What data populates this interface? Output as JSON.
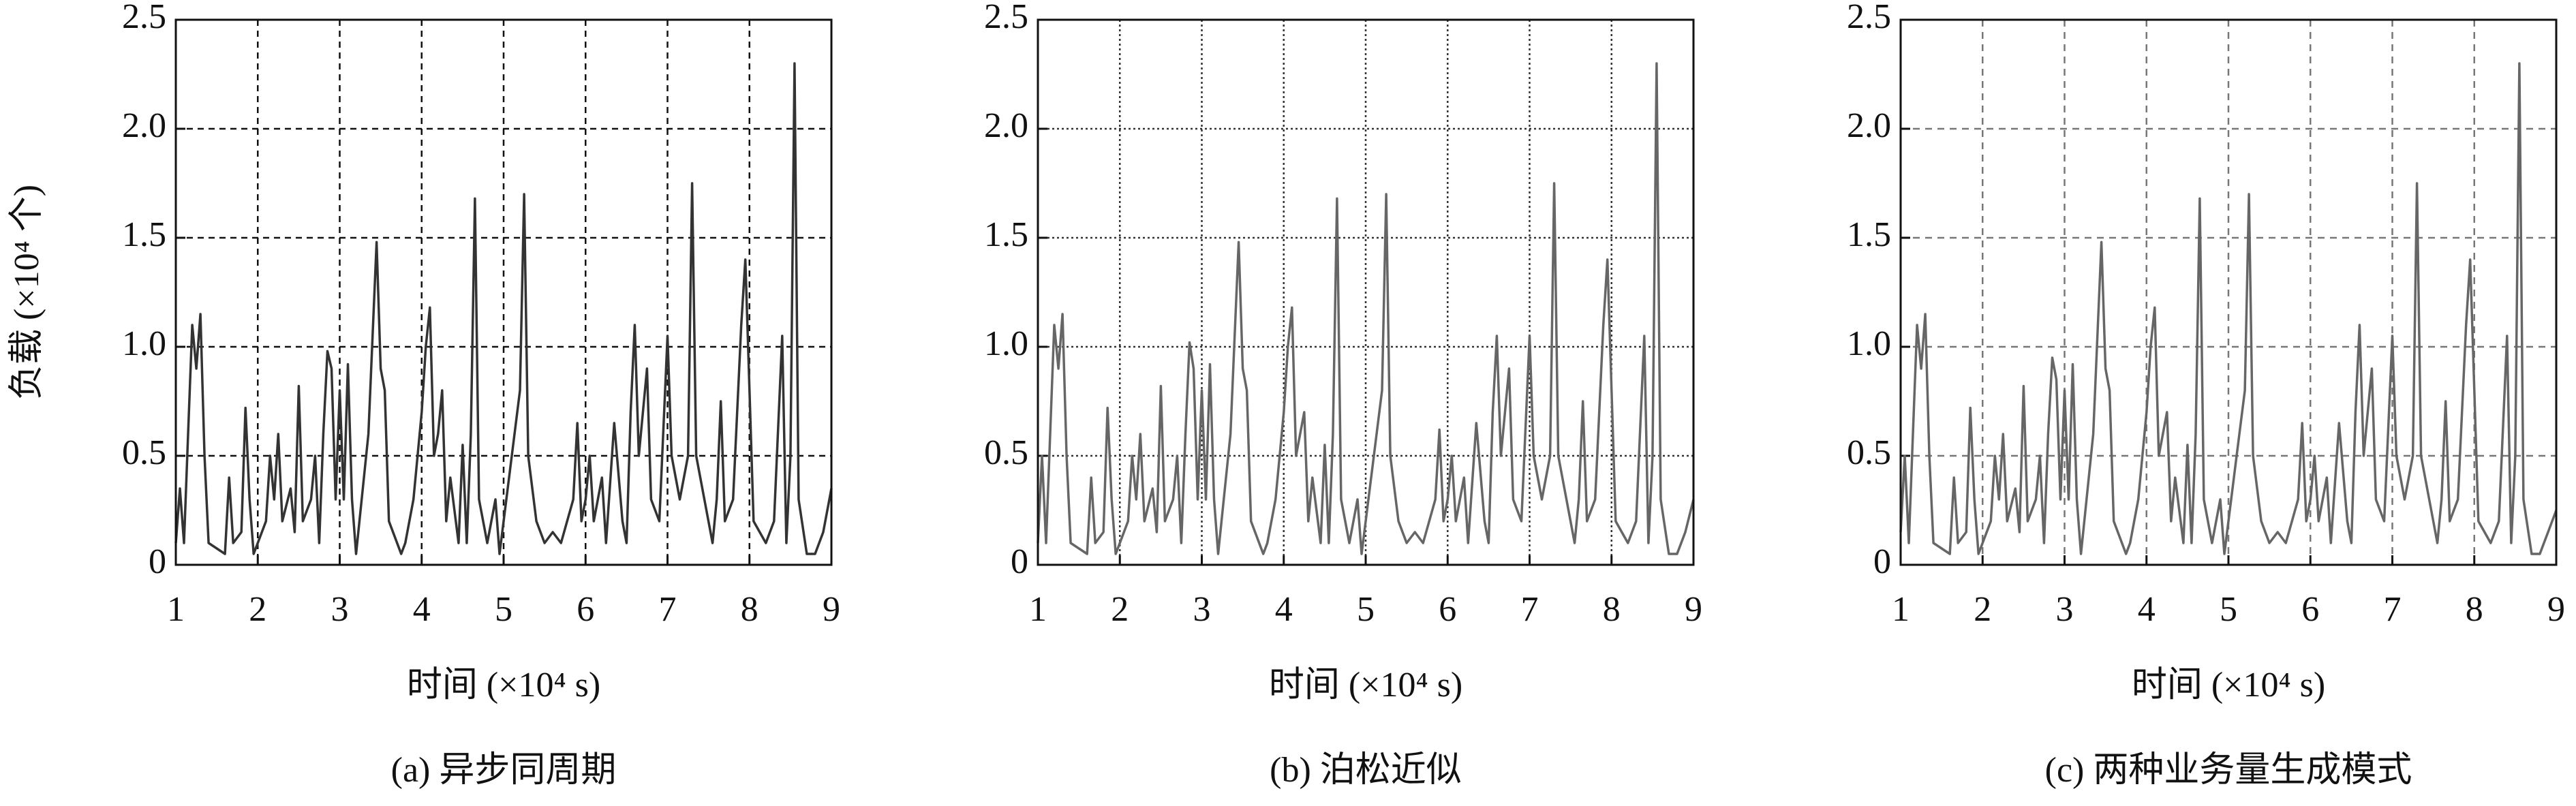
{
  "chart_data": [
    {
      "type": "line",
      "xlabel": "时间 (×10⁴ s)",
      "ylabel": "负载 (×10⁴ 个)",
      "caption": "(a) 异步同周期",
      "color": "#333333",
      "xlim": [
        1,
        9
      ],
      "ylim": [
        0,
        2.5
      ],
      "xticks": [
        1,
        2,
        3,
        4,
        5,
        6,
        7,
        8,
        9
      ],
      "yticks": [
        0,
        0.5,
        {
          "value": 1,
          "label": "1.0"
        },
        1.5,
        {
          "value": 2,
          "label": "2.0"
        },
        2.5
      ],
      "grid": true,
      "x": [
        1.0,
        1.05,
        1.1,
        1.15,
        1.2,
        1.25,
        1.3,
        1.35,
        1.4,
        1.6,
        1.65,
        1.7,
        1.8,
        1.85,
        1.9,
        1.95,
        2.1,
        2.15,
        2.2,
        2.25,
        2.3,
        2.4,
        2.45,
        2.5,
        2.55,
        2.65,
        2.7,
        2.75,
        2.8,
        2.85,
        2.9,
        2.95,
        3.0,
        3.05,
        3.1,
        3.15,
        3.2,
        3.35,
        3.45,
        3.5,
        3.55,
        3.6,
        3.75,
        3.8,
        3.9,
        4.0,
        4.05,
        4.1,
        4.15,
        4.2,
        4.25,
        4.3,
        4.35,
        4.45,
        4.5,
        4.55,
        4.6,
        4.65,
        4.7,
        4.8,
        4.9,
        4.95,
        5.1,
        5.2,
        5.25,
        5.3,
        5.4,
        5.5,
        5.6,
        5.7,
        5.85,
        5.9,
        5.95,
        6.0,
        6.05,
        6.1,
        6.2,
        6.25,
        6.35,
        6.45,
        6.5,
        6.55,
        6.6,
        6.65,
        6.75,
        6.8,
        6.9,
        7.0,
        7.05,
        7.15,
        7.25,
        7.3,
        7.35,
        7.45,
        7.55,
        7.6,
        7.65,
        7.7,
        7.8,
        7.9,
        7.95,
        8.0,
        8.05,
        8.2,
        8.3,
        8.4,
        8.45,
        8.5,
        8.55,
        8.6,
        8.7,
        8.8,
        8.9,
        9.0
      ],
      "values": [
        0.1,
        0.35,
        0.1,
        0.6,
        1.1,
        0.9,
        1.15,
        0.5,
        0.1,
        0.05,
        0.4,
        0.1,
        0.15,
        0.72,
        0.3,
        0.05,
        0.2,
        0.5,
        0.3,
        0.6,
        0.2,
        0.35,
        0.15,
        0.82,
        0.2,
        0.3,
        0.5,
        0.1,
        0.6,
        0.98,
        0.9,
        0.3,
        0.8,
        0.3,
        0.92,
        0.3,
        0.05,
        0.6,
        1.48,
        0.9,
        0.8,
        0.2,
        0.05,
        0.1,
        0.3,
        0.7,
        1.0,
        1.18,
        0.5,
        0.6,
        0.8,
        0.2,
        0.4,
        0.1,
        0.55,
        0.1,
        0.6,
        1.68,
        0.3,
        0.1,
        0.3,
        0.05,
        0.5,
        0.8,
        1.7,
        0.5,
        0.2,
        0.1,
        0.15,
        0.1,
        0.3,
        0.65,
        0.2,
        0.3,
        0.5,
        0.2,
        0.4,
        0.1,
        0.65,
        0.2,
        0.1,
        0.7,
        1.1,
        0.5,
        0.9,
        0.3,
        0.2,
        1.05,
        0.5,
        0.3,
        0.5,
        1.75,
        0.5,
        0.3,
        0.1,
        0.3,
        0.75,
        0.2,
        0.3,
        1.1,
        1.4,
        0.8,
        0.2,
        0.1,
        0.2,
        1.05,
        0.1,
        0.5,
        2.3,
        0.3,
        0.05,
        0.05,
        0.15,
        0.35
      ]
    },
    {
      "type": "line",
      "xlabel": "时间 (×10⁴ s)",
      "caption": "(b) 泊松近似",
      "color": "#666666",
      "xlim": [
        1,
        9
      ],
      "ylim": [
        0,
        2.5
      ],
      "xticks": [
        1,
        2,
        3,
        4,
        5,
        6,
        7,
        8,
        9
      ],
      "yticks": [
        0,
        0.5,
        {
          "value": 1,
          "label": "1.0"
        },
        1.5,
        {
          "value": 2,
          "label": "2.0"
        },
        2.5
      ],
      "grid": true,
      "x": [
        1.0,
        1.05,
        1.1,
        1.15,
        1.2,
        1.25,
        1.3,
        1.35,
        1.4,
        1.6,
        1.65,
        1.7,
        1.8,
        1.85,
        1.9,
        1.95,
        2.1,
        2.15,
        2.2,
        2.25,
        2.3,
        2.4,
        2.45,
        2.5,
        2.55,
        2.65,
        2.7,
        2.75,
        2.8,
        2.85,
        2.9,
        2.95,
        3.0,
        3.05,
        3.1,
        3.15,
        3.2,
        3.35,
        3.45,
        3.5,
        3.55,
        3.6,
        3.75,
        3.8,
        3.9,
        4.0,
        4.05,
        4.1,
        4.15,
        4.2,
        4.25,
        4.3,
        4.35,
        4.45,
        4.5,
        4.55,
        4.6,
        4.65,
        4.7,
        4.8,
        4.9,
        4.95,
        5.1,
        5.2,
        5.25,
        5.3,
        5.4,
        5.5,
        5.6,
        5.7,
        5.85,
        5.9,
        5.95,
        6.0,
        6.05,
        6.1,
        6.2,
        6.25,
        6.35,
        6.45,
        6.5,
        6.55,
        6.6,
        6.65,
        6.75,
        6.8,
        6.9,
        7.0,
        7.05,
        7.15,
        7.25,
        7.3,
        7.35,
        7.45,
        7.55,
        7.6,
        7.65,
        7.7,
        7.8,
        7.9,
        7.95,
        8.0,
        8.05,
        8.2,
        8.3,
        8.4,
        8.45,
        8.5,
        8.55,
        8.6,
        8.7,
        8.8,
        8.9,
        9.0
      ],
      "values": [
        0.1,
        0.5,
        0.1,
        0.6,
        1.1,
        0.9,
        1.15,
        0.5,
        0.1,
        0.05,
        0.4,
        0.1,
        0.15,
        0.72,
        0.3,
        0.05,
        0.2,
        0.5,
        0.3,
        0.6,
        0.2,
        0.35,
        0.15,
        0.82,
        0.2,
        0.3,
        0.5,
        0.1,
        0.6,
        1.02,
        0.9,
        0.3,
        0.8,
        0.3,
        0.92,
        0.3,
        0.05,
        0.6,
        1.48,
        0.9,
        0.8,
        0.2,
        0.05,
        0.1,
        0.3,
        0.7,
        1.0,
        1.18,
        0.5,
        0.6,
        0.7,
        0.2,
        0.4,
        0.1,
        0.55,
        0.1,
        0.6,
        1.68,
        0.3,
        0.1,
        0.3,
        0.05,
        0.5,
        0.8,
        1.7,
        0.5,
        0.2,
        0.1,
        0.15,
        0.1,
        0.3,
        0.62,
        0.2,
        0.3,
        0.5,
        0.2,
        0.4,
        0.1,
        0.65,
        0.2,
        0.1,
        0.7,
        1.05,
        0.5,
        0.9,
        0.3,
        0.2,
        1.05,
        0.5,
        0.3,
        0.5,
        1.75,
        0.5,
        0.3,
        0.1,
        0.3,
        0.75,
        0.2,
        0.3,
        1.1,
        1.4,
        0.8,
        0.2,
        0.1,
        0.2,
        1.05,
        0.1,
        0.5,
        2.3,
        0.3,
        0.05,
        0.05,
        0.15,
        0.3
      ]
    },
    {
      "type": "line",
      "xlabel": "时间 (×10⁴ s)",
      "caption": "(c) 两种业务量生成模式",
      "color": "#666666",
      "xlim": [
        1,
        9
      ],
      "ylim": [
        0,
        2.5
      ],
      "xticks": [
        1,
        2,
        3,
        4,
        5,
        6,
        7,
        8,
        9
      ],
      "yticks": [
        0,
        0.5,
        {
          "value": 1,
          "label": "1.0"
        },
        1.5,
        {
          "value": 2,
          "label": "2.0"
        },
        2.5
      ],
      "grid": true,
      "x": [
        1.0,
        1.05,
        1.1,
        1.15,
        1.2,
        1.25,
        1.3,
        1.35,
        1.4,
        1.6,
        1.65,
        1.7,
        1.8,
        1.85,
        1.9,
        1.95,
        2.1,
        2.15,
        2.2,
        2.25,
        2.3,
        2.4,
        2.45,
        2.5,
        2.55,
        2.65,
        2.7,
        2.75,
        2.8,
        2.85,
        2.9,
        2.95,
        3.0,
        3.05,
        3.1,
        3.15,
        3.2,
        3.35,
        3.45,
        3.5,
        3.55,
        3.6,
        3.75,
        3.8,
        3.9,
        4.0,
        4.05,
        4.1,
        4.15,
        4.2,
        4.25,
        4.3,
        4.35,
        4.45,
        4.5,
        4.55,
        4.6,
        4.65,
        4.7,
        4.8,
        4.9,
        4.95,
        5.1,
        5.2,
        5.25,
        5.3,
        5.4,
        5.5,
        5.6,
        5.7,
        5.85,
        5.9,
        5.95,
        6.0,
        6.05,
        6.1,
        6.2,
        6.25,
        6.35,
        6.45,
        6.5,
        6.55,
        6.6,
        6.65,
        6.75,
        6.8,
        6.9,
        7.0,
        7.05,
        7.15,
        7.25,
        7.3,
        7.35,
        7.45,
        7.55,
        7.6,
        7.65,
        7.7,
        7.8,
        7.9,
        7.95,
        8.0,
        8.05,
        8.2,
        8.3,
        8.4,
        8.45,
        8.5,
        8.55,
        8.6,
        8.7,
        8.8,
        8.9,
        9.0
      ],
      "values": [
        0.15,
        0.5,
        0.1,
        0.6,
        1.1,
        0.9,
        1.15,
        0.5,
        0.1,
        0.05,
        0.4,
        0.1,
        0.15,
        0.72,
        0.3,
        0.05,
        0.2,
        0.5,
        0.3,
        0.6,
        0.2,
        0.35,
        0.15,
        0.82,
        0.2,
        0.3,
        0.5,
        0.1,
        0.6,
        0.95,
        0.85,
        0.3,
        0.8,
        0.3,
        0.92,
        0.3,
        0.05,
        0.6,
        1.48,
        0.9,
        0.8,
        0.2,
        0.05,
        0.1,
        0.3,
        0.7,
        1.0,
        1.18,
        0.5,
        0.6,
        0.7,
        0.2,
        0.4,
        0.1,
        0.55,
        0.1,
        0.6,
        1.68,
        0.3,
        0.1,
        0.3,
        0.05,
        0.5,
        0.8,
        1.7,
        0.5,
        0.2,
        0.1,
        0.15,
        0.1,
        0.3,
        0.65,
        0.2,
        0.3,
        0.5,
        0.2,
        0.4,
        0.1,
        0.65,
        0.2,
        0.1,
        0.7,
        1.1,
        0.5,
        0.9,
        0.3,
        0.2,
        1.05,
        0.5,
        0.3,
        0.5,
        1.75,
        0.5,
        0.3,
        0.1,
        0.3,
        0.75,
        0.2,
        0.3,
        1.1,
        1.4,
        0.8,
        0.2,
        0.1,
        0.2,
        1.05,
        0.1,
        0.5,
        2.3,
        0.3,
        0.05,
        0.05,
        0.15,
        0.25
      ]
    }
  ]
}
